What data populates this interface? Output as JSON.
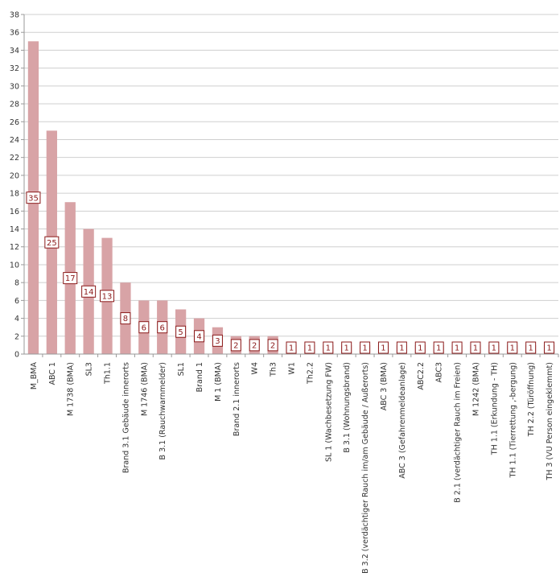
{
  "chart_data": {
    "type": "bar",
    "title": "",
    "xlabel": "",
    "ylabel": "",
    "ylim": [
      0,
      38
    ],
    "yticks": [
      0,
      2,
      4,
      6,
      8,
      10,
      12,
      14,
      16,
      18,
      20,
      22,
      24,
      26,
      28,
      30,
      32,
      34,
      36,
      38
    ],
    "grid": true,
    "legend": "none",
    "bar_color": "#d8a3a6",
    "label_color": "#8b1a1a",
    "categories": [
      "M_BMA",
      "ABC 1",
      "M 1738 (BMA)",
      "SL3",
      "Th1.1",
      "Brand 3.1 Gebäude innerorts",
      "M 1746 (BMA)",
      "B 3.1 (Rauchwarnmelder)",
      "SL1",
      "Brand 1",
      "M 1 (BMA)",
      "Brand 2.1 innerorts",
      "W4",
      "Th3",
      "W1",
      "Th2.2",
      "SL 1 (Wachbesetzung FW)",
      "B 3.1 (Wohnungsbrand)",
      "B 3.2 (verdächtiger Rauch im/am Gebäude / Außerorts)",
      "ABC 3 (BMA)",
      "ABC 3 (Gefahrenmeldeanlage)",
      "ABC2.2",
      "ABC3",
      "B 2.1 (verdächtiger Rauch im Freien)",
      "M 1242 (BMA)",
      "TH 1.1 (Erkundung - TH)",
      "TH 1.1 (Tierrettung ,-bergung)",
      "TH 2.2 (Türöffnung)",
      "TH 3 (VU Person eingeklemmt)"
    ],
    "values": [
      35,
      25,
      17,
      14,
      13,
      8,
      6,
      6,
      5,
      4,
      3,
      2,
      2,
      2,
      1,
      1,
      1,
      1,
      1,
      1,
      1,
      1,
      1,
      1,
      1,
      1,
      1,
      1,
      1
    ]
  }
}
